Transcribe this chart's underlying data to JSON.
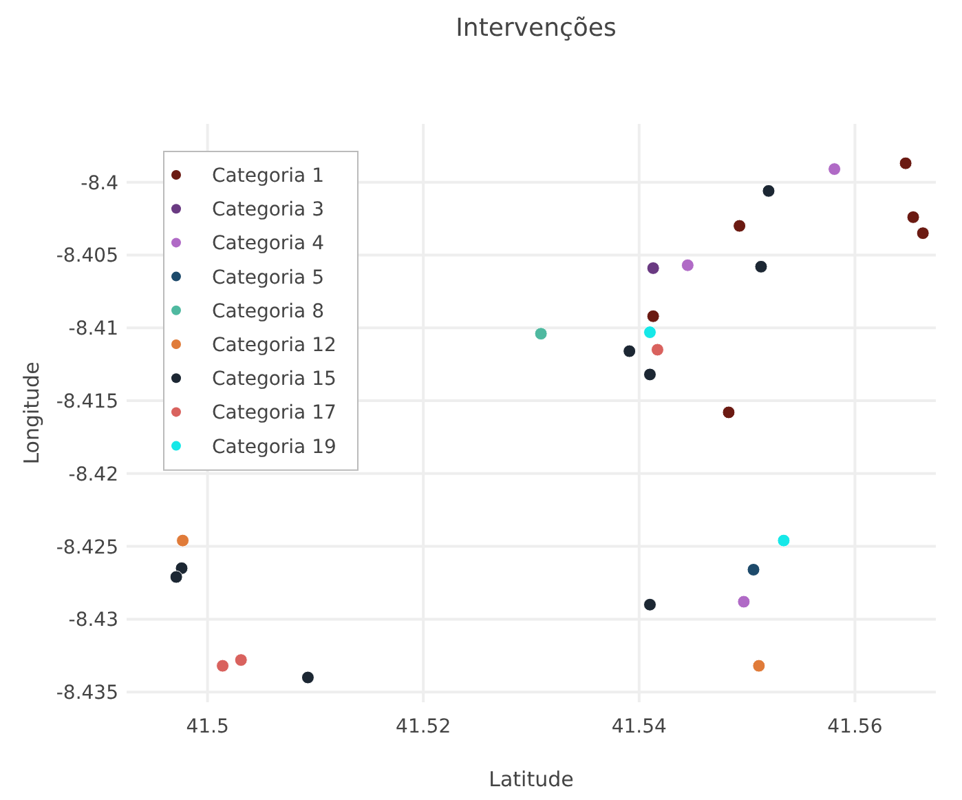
{
  "chart_data": {
    "type": "scatter",
    "title": "Intervenções",
    "xlabel": "Latitude",
    "ylabel": "Longitude",
    "xlim": [
      41.4925,
      41.5675
    ],
    "ylim": [
      -8.4357,
      -8.396
    ],
    "xticks": [
      41.5,
      41.52,
      41.54,
      41.56
    ],
    "yticks": [
      -8.4,
      -8.405,
      -8.41,
      -8.415,
      -8.42,
      -8.425,
      -8.43,
      -8.435
    ],
    "grid": true,
    "legend": "top left",
    "marker": "circle",
    "series": [
      {
        "name": "Categoria 1",
        "color": "#6b1a12",
        "x": [
          41.5647,
          41.5654,
          41.5663,
          41.5493,
          41.5413,
          41.5483
        ],
        "values": [
          -8.3987,
          -8.4024,
          -8.4035,
          -8.403,
          -8.4092,
          -8.4158
        ]
      },
      {
        "name": "Categoria 3",
        "color": "#6a3a82",
        "x": [
          41.5413
        ],
        "values": [
          -8.4059
        ]
      },
      {
        "name": "Categoria 4",
        "color": "#b06ac6",
        "x": [
          41.5581,
          41.5445,
          41.5497
        ],
        "values": [
          -8.3991,
          -8.4057,
          -8.4288
        ]
      },
      {
        "name": "Categoria 5",
        "color": "#1d4a6b",
        "x": [
          41.5506
        ],
        "values": [
          -8.4266
        ]
      },
      {
        "name": "Categoria 8",
        "color": "#4fb9a0",
        "x": [
          41.5309
        ],
        "values": [
          -8.4104
        ]
      },
      {
        "name": "Categoria 12",
        "color": "#e07b39",
        "x": [
          41.4977,
          41.5511
        ],
        "values": [
          -8.4246,
          -8.4332
        ]
      },
      {
        "name": "Categoria 15",
        "color": "#1c2733",
        "x": [
          41.552,
          41.5513,
          41.5391,
          41.541,
          41.541,
          41.4976,
          41.4971,
          41.5093
        ],
        "values": [
          -8.4006,
          -8.4058,
          -8.4116,
          -8.4132,
          -8.429,
          -8.4265,
          -8.4271,
          -8.434
        ]
      },
      {
        "name": "Categoria 17",
        "color": "#d9625e",
        "x": [
          41.5417,
          41.5014,
          41.5031
        ],
        "values": [
          -8.4115,
          -8.4332,
          -8.4328
        ]
      },
      {
        "name": "Categoria 19",
        "color": "#16e8e8",
        "x": [
          41.541,
          41.5534
        ],
        "values": [
          -8.4103,
          -8.4246
        ]
      }
    ]
  }
}
